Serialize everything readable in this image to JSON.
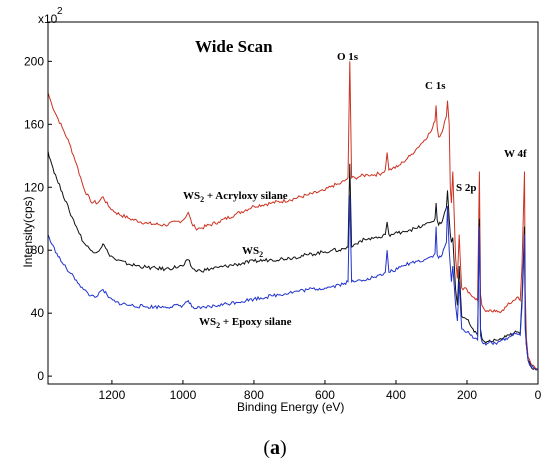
{
  "panel_label": {
    "open": "(",
    "letter": "a",
    "close": ")"
  },
  "chart_data": {
    "type": "line",
    "title": "Wide Scan",
    "xlabel": "Binding Energy (eV)",
    "ylabel": "Intensity(cps)",
    "y_multiplier": "x10",
    "y_multiplier_exp": "2",
    "xlim": [
      1380,
      0
    ],
    "ylim": [
      -5,
      225
    ],
    "x_ticks": [
      1200,
      1000,
      800,
      600,
      400,
      200,
      0
    ],
    "y_ticks": [
      0,
      40,
      80,
      120,
      160,
      200
    ],
    "grid": false,
    "annotations": [
      "O 1s",
      "C 1s",
      "S 2p",
      "W 4f",
      "WS",
      "2",
      " + Acryloxy silane",
      " + Epoxy silane"
    ],
    "series": [
      {
        "color": "#cc3322",
        "x": [
          1380,
          1370,
          1355,
          1340,
          1320,
          1300,
          1280,
          1260,
          1240,
          1225,
          1210,
          1190,
          1150,
          1100,
          1050,
          1000,
          985,
          975,
          965,
          950,
          900,
          850,
          800,
          750,
          700,
          650,
          600,
          580,
          560,
          545,
          535,
          530,
          525,
          515,
          500,
          480,
          460,
          440,
          430,
          425,
          420,
          410,
          395,
          380,
          360,
          340,
          320,
          300,
          290,
          287,
          284,
          280,
          270,
          263,
          258,
          255,
          250,
          247,
          244,
          240,
          232,
          227,
          222,
          215,
          200,
          190,
          180,
          170,
          165,
          162,
          158,
          150,
          140,
          130,
          120,
          110,
          100,
          90,
          80,
          70,
          60,
          50,
          45,
          38,
          36,
          33,
          28,
          20,
          10,
          2
        ],
        "values": [
          180,
          173,
          165,
          158,
          148,
          135,
          120,
          111,
          110,
          114,
          108,
          104,
          100,
          97,
          96,
          99,
          104,
          97,
          94,
          94,
          98,
          103,
          108,
          110,
          112,
          115,
          118,
          121,
          122,
          124,
          126,
          200,
          126,
          126,
          127,
          128,
          128,
          129,
          131,
          142,
          131,
          132,
          133,
          136,
          140,
          145,
          150,
          156,
          162,
          172,
          158,
          152,
          155,
          162,
          165,
          175,
          160,
          120,
          110,
          130,
          75,
          62,
          90,
          56,
          55,
          52,
          50,
          48,
          130,
          52,
          45,
          42,
          41,
          41,
          41,
          41,
          42,
          44,
          46,
          48,
          50,
          48,
          70,
          130,
          55,
          25,
          12,
          8,
          6,
          5
        ]
      },
      {
        "color": "#111111",
        "x": [
          1380,
          1370,
          1355,
          1340,
          1320,
          1300,
          1280,
          1260,
          1240,
          1225,
          1210,
          1190,
          1150,
          1100,
          1050,
          1000,
          985,
          975,
          965,
          950,
          900,
          850,
          800,
          750,
          700,
          650,
          600,
          580,
          560,
          545,
          535,
          530,
          525,
          515,
          500,
          480,
          460,
          440,
          430,
          425,
          420,
          410,
          395,
          380,
          360,
          340,
          320,
          300,
          290,
          287,
          284,
          280,
          270,
          263,
          258,
          255,
          250,
          247,
          244,
          240,
          232,
          227,
          222,
          215,
          200,
          190,
          180,
          170,
          165,
          162,
          158,
          150,
          140,
          130,
          120,
          110,
          100,
          90,
          80,
          70,
          60,
          50,
          45,
          38,
          36,
          33,
          28,
          20,
          10,
          2
        ],
        "values": [
          143,
          135,
          125,
          117,
          105,
          95,
          85,
          80,
          79,
          84,
          78,
          74,
          71,
          69,
          68,
          70,
          74,
          69,
          67,
          67,
          69,
          71,
          73,
          74,
          75,
          77,
          79,
          80,
          80,
          81,
          82,
          135,
          82,
          84,
          86,
          87,
          88,
          88,
          90,
          98,
          90,
          90,
          91,
          92,
          93,
          94,
          96,
          98,
          100,
          110,
          99,
          96,
          98,
          104,
          107,
          118,
          100,
          90,
          85,
          88,
          55,
          45,
          70,
          38,
          36,
          32,
          28,
          26,
          100,
          30,
          24,
          22,
          22,
          22,
          23,
          23,
          24,
          25,
          26,
          27,
          28,
          27,
          50,
          95,
          35,
          20,
          10,
          6,
          5,
          4
        ]
      },
      {
        "color": "#2233cc",
        "x": [
          1380,
          1370,
          1355,
          1340,
          1320,
          1300,
          1280,
          1260,
          1240,
          1225,
          1210,
          1190,
          1150,
          1100,
          1050,
          1000,
          985,
          975,
          965,
          950,
          900,
          850,
          800,
          750,
          700,
          650,
          600,
          580,
          560,
          545,
          535,
          530,
          525,
          515,
          500,
          480,
          460,
          440,
          430,
          425,
          420,
          410,
          395,
          380,
          360,
          340,
          320,
          300,
          290,
          287,
          284,
          280,
          270,
          263,
          258,
          255,
          250,
          247,
          244,
          240,
          232,
          227,
          222,
          215,
          200,
          190,
          180,
          170,
          165,
          162,
          158,
          150,
          140,
          130,
          120,
          110,
          100,
          90,
          80,
          70,
          60,
          50,
          45,
          38,
          36,
          33,
          28,
          20,
          10,
          2
        ],
        "values": [
          90,
          84,
          78,
          72,
          66,
          61,
          55,
          51,
          51,
          55,
          50,
          47,
          45,
          44,
          44,
          45,
          48,
          44,
          43,
          43,
          45,
          47,
          49,
          51,
          53,
          55,
          56,
          57,
          58,
          59,
          60,
          115,
          60,
          60,
          61,
          62,
          63,
          64,
          66,
          80,
          66,
          67,
          68,
          70,
          72,
          73,
          74,
          76,
          78,
          95,
          77,
          75,
          77,
          82,
          85,
          108,
          80,
          70,
          60,
          70,
          45,
          35,
          60,
          30,
          28,
          26,
          24,
          23,
          95,
          26,
          22,
          21,
          21,
          21,
          21,
          22,
          23,
          24,
          25,
          26,
          27,
          26,
          45,
          90,
          30,
          20,
          10,
          6,
          5,
          4
        ]
      }
    ]
  }
}
